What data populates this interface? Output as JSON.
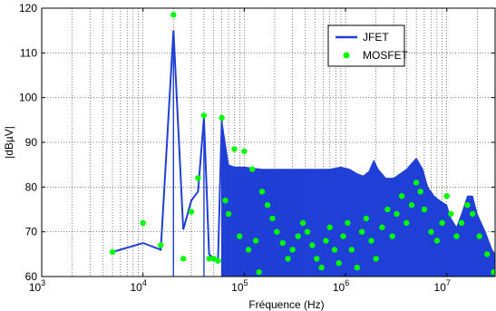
{
  "chart_data": {
    "type": "line",
    "xlabel": "Fréquence (Hz)",
    "ylabel": "|dBµV|",
    "xscale": "log",
    "xlim": [
      1000,
      30000000
    ],
    "ylim": [
      60,
      120
    ],
    "x_ticks": [
      {
        "base": "10",
        "exp": "3",
        "value": 1000
      },
      {
        "base": "10",
        "exp": "4",
        "value": 10000
      },
      {
        "base": "10",
        "exp": "5",
        "value": 100000
      },
      {
        "base": "10",
        "exp": "6",
        "value": 1000000
      },
      {
        "base": "10",
        "exp": "7",
        "value": 10000000
      }
    ],
    "y_ticks": [
      60,
      70,
      80,
      90,
      100,
      110,
      120
    ],
    "grid": true,
    "legend_position": "top-right",
    "colors": {
      "jfet": "#0000ff",
      "mosfet": "#00ff00"
    },
    "series": [
      {
        "name": "JFET",
        "style": "line",
        "color": "#1f3fd6",
        "points": [
          [
            5000,
            65.5
          ],
          [
            10000,
            67.5
          ],
          [
            15000,
            66
          ],
          [
            20000,
            115
          ],
          [
            25000,
            70.5
          ],
          [
            30000,
            77
          ],
          [
            35000,
            79
          ],
          [
            40000,
            95.5
          ],
          [
            45000,
            65
          ],
          [
            50000,
            64
          ],
          [
            55000,
            63.5
          ],
          [
            60000,
            95
          ]
        ],
        "envelope": {
          "start": 60000,
          "upper": [
            [
              60000,
              95
            ],
            [
              70000,
              85
            ],
            [
              80000,
              84.5
            ],
            [
              100000,
              84.5
            ],
            [
              150000,
              84
            ],
            [
              200000,
              84
            ],
            [
              300000,
              84
            ],
            [
              500000,
              84
            ],
            [
              700000,
              84
            ],
            [
              900000,
              84.5
            ],
            [
              1100000,
              84
            ],
            [
              1300000,
              83
            ],
            [
              1500000,
              82.5
            ],
            [
              1700000,
              83.5
            ],
            [
              1900000,
              86
            ],
            [
              2100000,
              84
            ],
            [
              2500000,
              82
            ],
            [
              3000000,
              82
            ],
            [
              4000000,
              84
            ],
            [
              5000000,
              86.5
            ],
            [
              5800000,
              84
            ],
            [
              6500000,
              80
            ],
            [
              7500000,
              78
            ],
            [
              8500000,
              77
            ],
            [
              10000000,
              76
            ],
            [
              11000000,
              73
            ],
            [
              12500000,
              71
            ],
            [
              14000000,
              74
            ],
            [
              16000000,
              78
            ],
            [
              18000000,
              78
            ],
            [
              20000000,
              74
            ],
            [
              24000000,
              70
            ],
            [
              28000000,
              66
            ],
            [
              30000000,
              65
            ]
          ],
          "lower": 60
        }
      },
      {
        "name": "MOSFET",
        "style": "markers",
        "color": "#00ff00",
        "points": [
          [
            5000,
            65.5
          ],
          [
            10000,
            72
          ],
          [
            15000,
            67
          ],
          [
            20000,
            118.5
          ],
          [
            25000,
            64
          ],
          [
            30000,
            74.5
          ],
          [
            35000,
            82
          ],
          [
            40000,
            96
          ],
          [
            45000,
            64
          ],
          [
            50000,
            64
          ],
          [
            55000,
            63.5
          ],
          [
            60000,
            95.5
          ],
          [
            65000,
            77
          ],
          [
            70000,
            74
          ],
          [
            80000,
            88.5
          ],
          [
            90000,
            69
          ],
          [
            100000,
            88
          ],
          [
            110000,
            66
          ],
          [
            120000,
            84
          ],
          [
            130000,
            68
          ],
          [
            140000,
            61
          ],
          [
            150000,
            79
          ],
          [
            170000,
            76
          ],
          [
            190000,
            73
          ],
          [
            210000,
            70
          ],
          [
            240000,
            67.5
          ],
          [
            270000,
            64
          ],
          [
            300000,
            66
          ],
          [
            340000,
            69
          ],
          [
            380000,
            72
          ],
          [
            420000,
            70
          ],
          [
            470000,
            67
          ],
          [
            520000,
            64
          ],
          [
            580000,
            62
          ],
          [
            640000,
            68
          ],
          [
            700000,
            71
          ],
          [
            780000,
            66
          ],
          [
            860000,
            63
          ],
          [
            950000,
            69
          ],
          [
            1050000,
            72
          ],
          [
            1150000,
            66
          ],
          [
            1300000,
            62
          ],
          [
            1450000,
            70
          ],
          [
            1600000,
            73
          ],
          [
            1800000,
            68
          ],
          [
            2000000,
            64
          ],
          [
            2300000,
            71
          ],
          [
            2600000,
            75
          ],
          [
            2900000,
            69
          ],
          [
            3200000,
            74
          ],
          [
            3600000,
            78
          ],
          [
            4000000,
            72
          ],
          [
            4500000,
            76
          ],
          [
            5000000,
            81
          ],
          [
            5500000,
            79
          ],
          [
            6000000,
            75
          ],
          [
            7000000,
            70
          ],
          [
            8000000,
            68
          ],
          [
            9000000,
            72
          ],
          [
            10000000,
            78
          ],
          [
            11000000,
            74
          ],
          [
            12500000,
            69
          ],
          [
            14000000,
            72
          ],
          [
            16000000,
            76
          ],
          [
            18000000,
            74
          ],
          [
            21000000,
            69
          ],
          [
            25000000,
            65
          ],
          [
            29000000,
            61
          ]
        ]
      }
    ]
  }
}
